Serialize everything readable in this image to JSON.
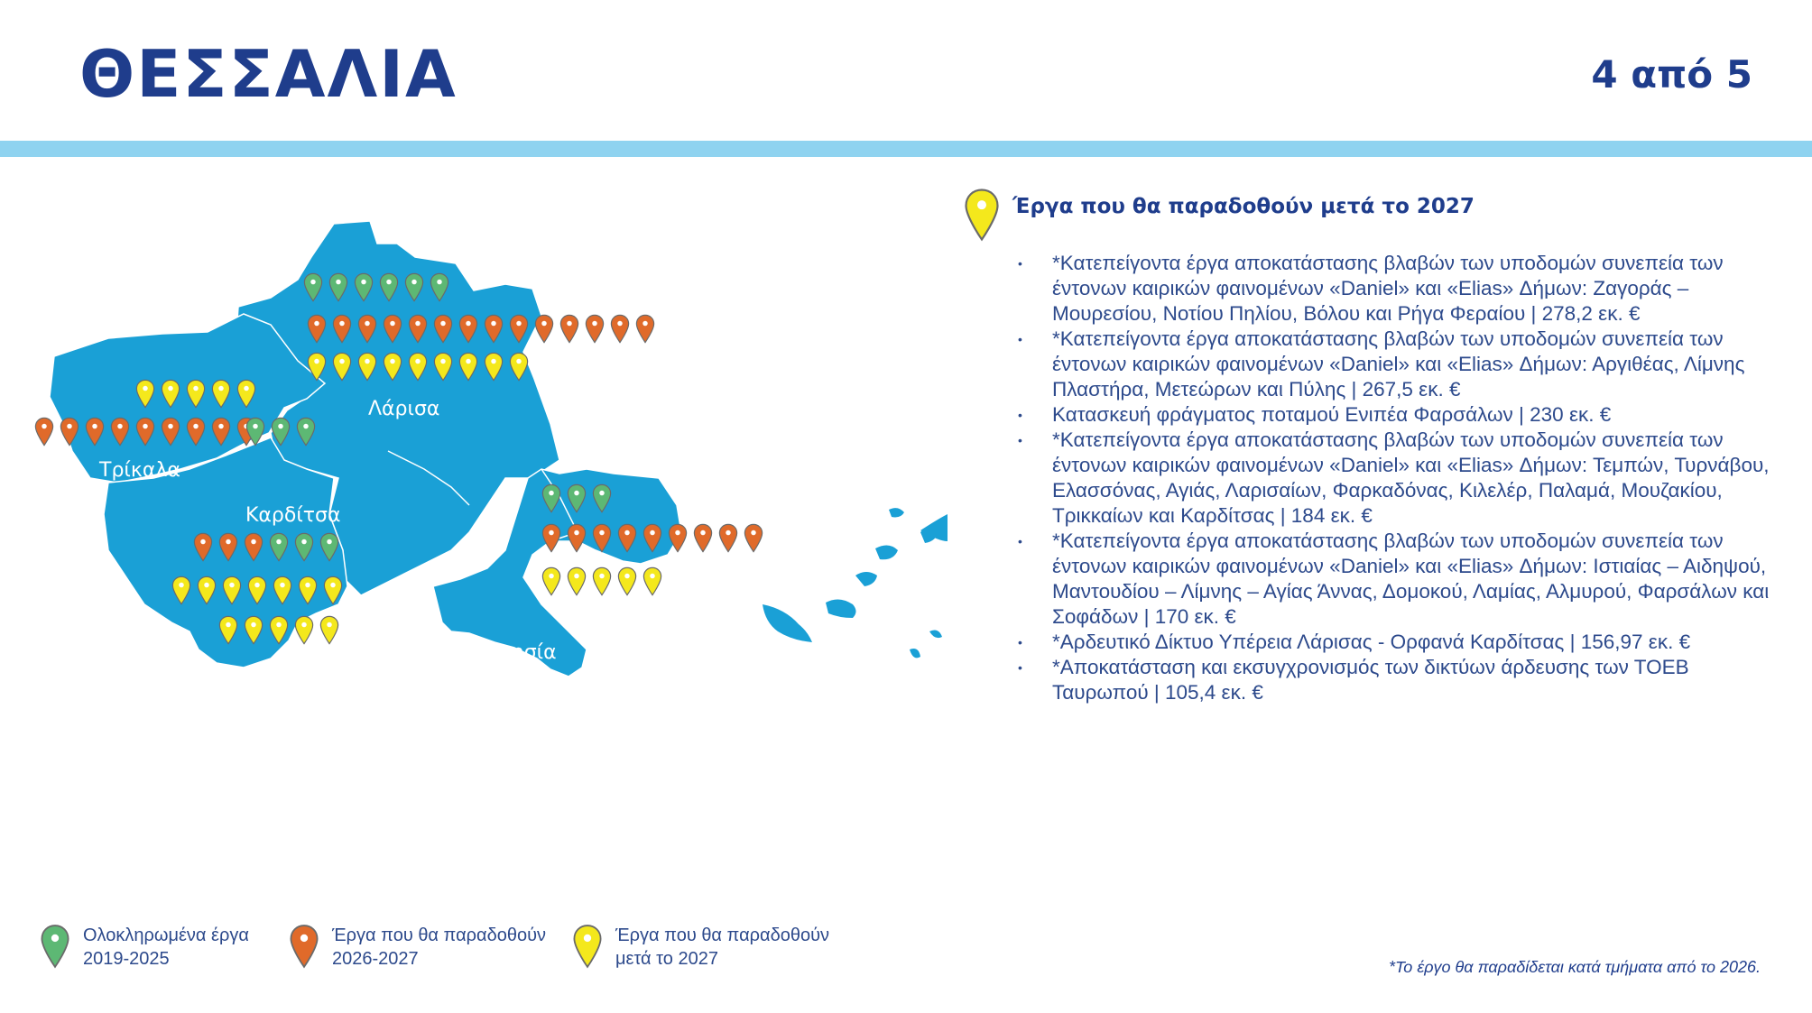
{
  "header": {
    "title": "ΘΕΣΣΑΛΙΑ",
    "page_indicator": "4 από 5"
  },
  "colors": {
    "brand_blue": "#1f3d8c",
    "band": "#8fd3f0",
    "map_fill": "#1aa0d6",
    "completed": "#5db874",
    "upcoming": "#e06a2a",
    "after_2027": "#f4e81c"
  },
  "map": {
    "regions": [
      "Λάρισα",
      "Τρίκαλα",
      "Καρδίτσα",
      "Μαγνησία"
    ],
    "pin_groups": [
      {
        "region": "Λάρισα",
        "category": "completed",
        "count": 6
      },
      {
        "region": "Λάρισα",
        "category": "upcoming",
        "count": 14
      },
      {
        "region": "Λάρισα",
        "category": "after_2027",
        "count": 9
      },
      {
        "region": "Τρίκαλα",
        "category": "after_2027",
        "count": 5
      },
      {
        "region": "Τρίκαλα",
        "category": "upcoming",
        "count": 9
      },
      {
        "region": "Τρίκαλα",
        "category": "completed",
        "count": 3
      },
      {
        "region": "Καρδίτσα",
        "category": "upcoming",
        "count": 3
      },
      {
        "region": "Καρδίτσα",
        "category": "completed",
        "count": 3
      },
      {
        "region": "Καρδίτσα",
        "category": "after_2027",
        "count": 12
      },
      {
        "region": "Μαγνησία",
        "category": "completed",
        "count": 3
      },
      {
        "region": "Μαγνησία",
        "category": "upcoming",
        "count": 9
      },
      {
        "region": "Μαγνησία",
        "category": "after_2027",
        "count": 5
      }
    ]
  },
  "panel": {
    "icon": "yellow-map-pin-icon",
    "title": "Έργα που θα παραδοθούν μετά το 2027",
    "items": [
      "*Κατεπείγοντα έργα αποκατάστασης βλαβών των υποδομών συνεπεία των έντονων καιρικών φαινομένων «Daniel» και «Elias» Δήμων: Ζαγοράς – Μουρεσίου, Νοτίου Πηλίου, Βόλου και Ρήγα Φεραίου | 278,2 εκ. €",
      "*Κατεπείγοντα έργα αποκατάστασης βλαβών των υποδομών συνεπεία των έντονων καιρικών φαινομένων «Daniel» και «Elias» Δήμων: Αργιθέας, Λίμνης Πλαστήρα, Μετεώρων και Πύλης | 267,5 εκ. €",
      "Κατασκευή φράγματος ποταμού Ενιπέα Φαρσάλων | 230 εκ. €",
      "*Κατεπείγοντα έργα αποκατάστασης βλαβών των υποδομών συνεπεία των έντονων καιρικών φαινομένων «Daniel» και «Elias» Δήμων: Τεμπών, Τυρνάβου, Ελασσόνας, Αγιάς, Λαρισαίων, Φαρκαδόνας, Κιλελέρ, Παλαμά, Μουζακίου, Τρικκαίων και Καρδίτσας | 184 εκ. €",
      "*Κατεπείγοντα έργα αποκατάστασης βλαβών των υποδομών συνεπεία των έντονων καιρικών φαινομένων «Daniel» και «Elias» Δήμων: Ιστιαίας – Αιδηψού, Μαντουδίου – Λίμνης – Αγίας Άννας, Δομοκού, Λαμίας, Αλμυρού, Φαρσάλων και Σοφάδων | 170 εκ. €",
      "*Αρδευτικό Δίκτυο Υπέρεια Λάρισας - Ορφανά Καρδίτσας | 156,97 εκ. €",
      "*Αποκατάσταση και εκσυγχρονισμός των δικτύων άρδευσης των ΤΟΕΒ Ταυρωπού | 105,4 εκ. €"
    ]
  },
  "legend": [
    {
      "icon": "green-map-pin-icon",
      "line1": "Ολοκληρωμένα έργα",
      "line2": "2019-2025"
    },
    {
      "icon": "orange-map-pin-icon",
      "line1": "Έργα που θα παραδοθούν",
      "line2": "2026-2027"
    },
    {
      "icon": "yellow-map-pin-icon",
      "line1": "Έργα που θα παραδοθούν",
      "line2": "μετά το 2027"
    }
  ],
  "footnote": "*Το έργο θα παραδίδεται κατά τμήματα από το 2026."
}
